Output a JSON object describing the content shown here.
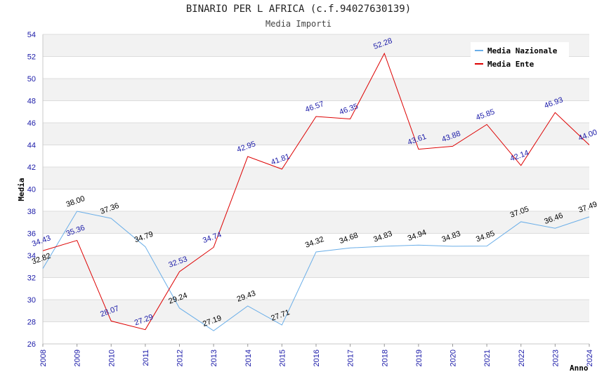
{
  "chart_data": {
    "type": "line",
    "title": "BINARIO PER L AFRICA (c.f.94027630139)",
    "subtitle": "Media Importi",
    "xlabel": "Anno",
    "ylabel": "Media",
    "ylim": [
      26,
      54
    ],
    "yticks": [
      26,
      28,
      30,
      32,
      34,
      36,
      38,
      40,
      42,
      44,
      46,
      48,
      50,
      52,
      54
    ],
    "x": [
      "2008",
      "2009",
      "2010",
      "2011",
      "2012",
      "2013",
      "2014",
      "2015",
      "2016",
      "2017",
      "2018",
      "2019",
      "2020",
      "2021",
      "2022",
      "2023",
      "2024"
    ],
    "series": [
      {
        "name": "Media Nazionale",
        "color": "#6aaee8",
        "label_color": "#000000",
        "values": [
          32.82,
          38.0,
          37.36,
          34.79,
          29.24,
          27.19,
          29.43,
          27.71,
          34.32,
          34.68,
          34.83,
          34.94,
          34.83,
          34.85,
          37.05,
          36.46,
          37.49
        ],
        "labels": [
          "32.82",
          "38.00",
          "37.36",
          "34.79",
          "29.24",
          "27.19",
          "29.43",
          "27.71",
          "34.32",
          "34.68",
          "34.83",
          "34.94",
          "34.83",
          "34.85",
          "37.05",
          "36.46",
          "37.49"
        ]
      },
      {
        "name": "Media Ente",
        "color": "#dd0000",
        "label_color": "#1a1aa8",
        "values": [
          34.43,
          35.36,
          28.07,
          27.29,
          32.53,
          34.74,
          42.95,
          41.81,
          46.57,
          46.35,
          52.28,
          43.61,
          43.88,
          45.85,
          42.14,
          46.93,
          44.0
        ],
        "labels": [
          "34.43",
          "35.36",
          "28.07",
          "27.29",
          "32.53",
          "34.74",
          "42.95",
          "41.81",
          "46.57",
          "46.35",
          "52.28",
          "43.61",
          "43.88",
          "45.85",
          "42.14",
          "46.93",
          "44.00"
        ]
      }
    ],
    "grid": true,
    "legend": "top-right"
  }
}
